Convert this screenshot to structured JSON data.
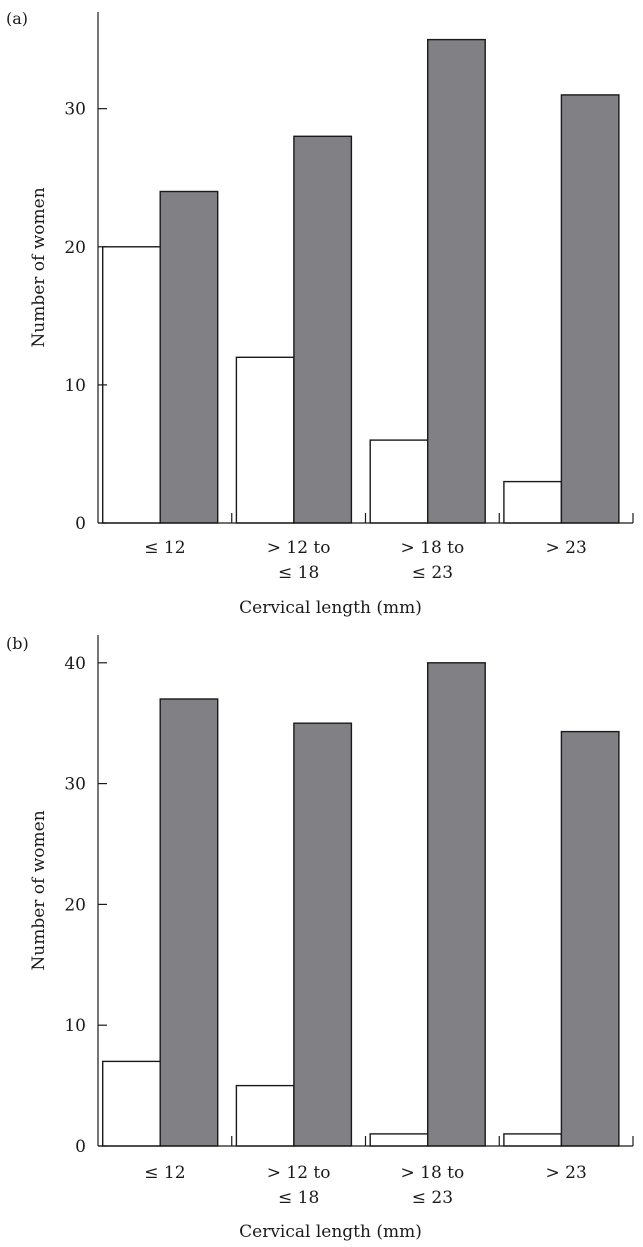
{
  "chart_data": [
    {
      "type": "bar",
      "panel_label": "(a)",
      "categories": [
        [
          "≤ 12"
        ],
        [
          "> 12 to",
          "≤ 18"
        ],
        [
          "> 18 to",
          "≤ 23"
        ],
        [
          "> 23"
        ]
      ],
      "series": [
        {
          "values": [
            20,
            12,
            6,
            3
          ],
          "color": "#ffffff"
        },
        {
          "values": [
            24,
            28,
            35,
            31
          ],
          "color": "#808085"
        }
      ],
      "yticks": [
        0,
        10,
        20,
        30
      ],
      "ylim": [
        0,
        37
      ],
      "xlabel": "Cervical length (mm)",
      "ylabel": "Number of women"
    },
    {
      "type": "bar",
      "panel_label": "(b)",
      "categories": [
        [
          "≤ 12"
        ],
        [
          "> 12 to",
          "≤ 18"
        ],
        [
          "> 18 to",
          "≤ 23"
        ],
        [
          "> 23"
        ]
      ],
      "series": [
        {
          "values": [
            7,
            5,
            1,
            1
          ],
          "color": "#ffffff"
        },
        {
          "values": [
            37,
            35,
            40,
            34.3
          ],
          "color": "#808085"
        }
      ],
      "yticks": [
        0,
        10,
        20,
        30,
        40
      ],
      "ylim": [
        0,
        42.3
      ],
      "xlabel": "Cervical length (mm)",
      "ylabel": "Number of women"
    }
  ]
}
